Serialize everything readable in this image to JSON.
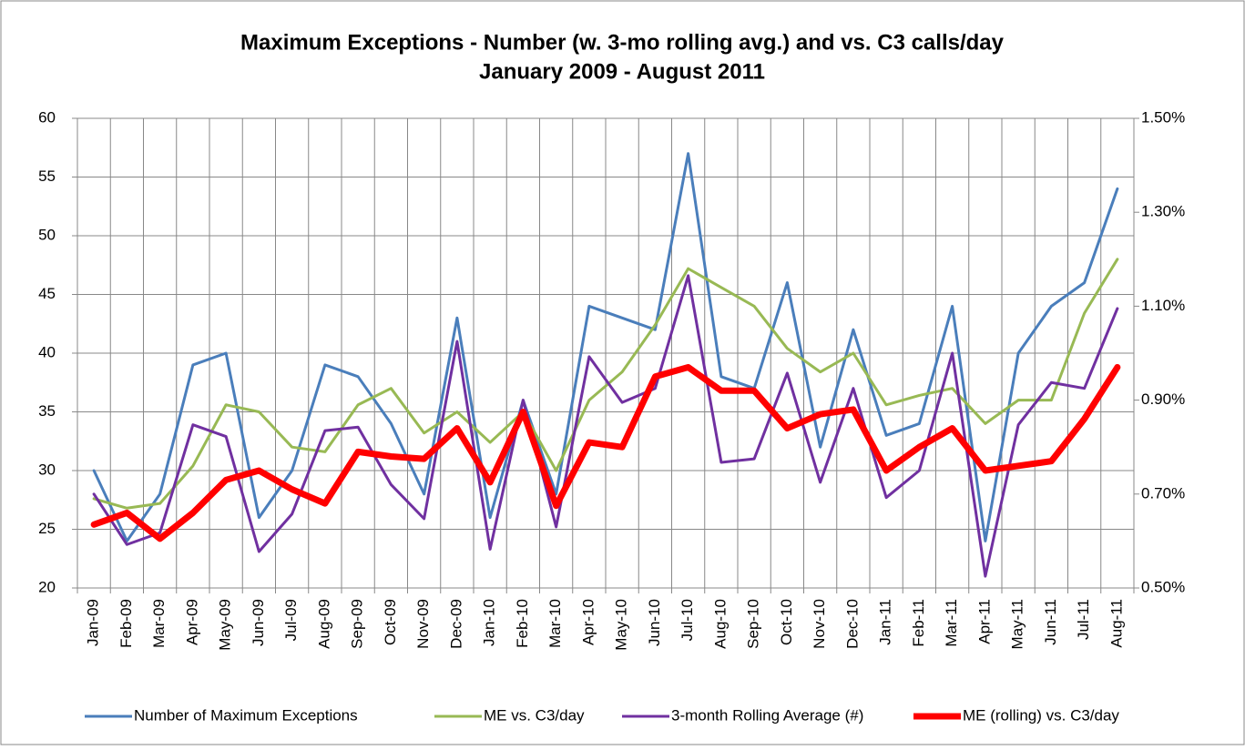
{
  "chart_data": {
    "type": "line",
    "title": "Maximum Exceptions - Number (w. 3-mo rolling avg.) and vs. C3 calls/day",
    "subtitle": "January 2009 - August 2011",
    "categories": [
      "Jan-09",
      "Feb-09",
      "Mar-09",
      "Apr-09",
      "May-09",
      "Jun-09",
      "Jul-09",
      "Aug-09",
      "Sep-09",
      "Oct-09",
      "Nov-09",
      "Dec-09",
      "Jan-10",
      "Feb-10",
      "Mar-10",
      "Apr-10",
      "May-10",
      "Jun-10",
      "Jul-10",
      "Aug-10",
      "Sep-10",
      "Oct-10",
      "Nov-10",
      "Dec-10",
      "Jan-11",
      "Feb-11",
      "Mar-11",
      "Apr-11",
      "May-11",
      "Jun-11",
      "Jul-11",
      "Aug-11"
    ],
    "series": [
      {
        "name": "Number of Maximum Exceptions",
        "color": "#4a7ebb",
        "width": 3,
        "axis": "y",
        "values": [
          30,
          24,
          28,
          39,
          40,
          26,
          30,
          39,
          38,
          34,
          28,
          43,
          26,
          36,
          28,
          44,
          43,
          42,
          57,
          38,
          37,
          46,
          32,
          42,
          33,
          34,
          44,
          24,
          40,
          44,
          46,
          54
        ]
      },
      {
        "name": "ME vs. C3/day",
        "color": "#98b954",
        "width": 3,
        "axis": "y2",
        "values": [
          0.69,
          0.67,
          0.68,
          0.76,
          0.89,
          0.875,
          0.8,
          0.79,
          0.89,
          0.925,
          0.83,
          0.875,
          0.81,
          0.875,
          0.75,
          0.9,
          0.96,
          1.06,
          1.18,
          1.14,
          1.1,
          1.01,
          0.96,
          1.0,
          0.89,
          0.91,
          0.925,
          0.85,
          0.9,
          0.9,
          1.085,
          1.2
        ]
      },
      {
        "name": "3-month Rolling Average (#)",
        "color": "#7030a0",
        "width": 3,
        "axis": "y",
        "values": [
          28,
          23.7,
          24.7,
          33.9,
          32.9,
          23.1,
          26.3,
          33.4,
          33.7,
          28.8,
          25.9,
          41,
          23.3,
          36,
          25.2,
          39.7,
          35.8,
          37,
          46.6,
          30.7,
          31,
          38.3,
          29,
          37,
          27.7,
          30,
          40,
          21,
          33.9,
          37.5,
          37,
          43.8
        ]
      },
      {
        "name": "ME (rolling) vs. C3/day",
        "color": "#ff0000",
        "width": 7,
        "axis": "y2",
        "values": [
          0.635,
          0.66,
          0.605,
          0.66,
          0.73,
          0.75,
          0.71,
          0.68,
          0.79,
          0.78,
          0.775,
          0.84,
          0.725,
          0.875,
          0.675,
          0.81,
          0.8,
          0.95,
          0.97,
          0.92,
          0.92,
          0.84,
          0.87,
          0.88,
          0.75,
          0.8,
          0.84,
          0.75,
          0.76,
          0.77,
          0.86,
          0.97
        ]
      }
    ],
    "ylim": [
      20,
      60
    ],
    "yticks": [
      20,
      25,
      30,
      35,
      40,
      45,
      50,
      55,
      60
    ],
    "y2lim": [
      0.5,
      1.5
    ],
    "y2ticks": [
      {
        "value": 0.5,
        "label": "0.50%"
      },
      {
        "value": 0.7,
        "label": "0.70%"
      },
      {
        "value": 0.9,
        "label": "0.90%"
      },
      {
        "value": 1.1,
        "label": "1.10%"
      },
      {
        "value": 1.3,
        "label": "1.30%"
      },
      {
        "value": 1.5,
        "label": "1.50%"
      }
    ],
    "grid": true,
    "legend": "bottom"
  }
}
